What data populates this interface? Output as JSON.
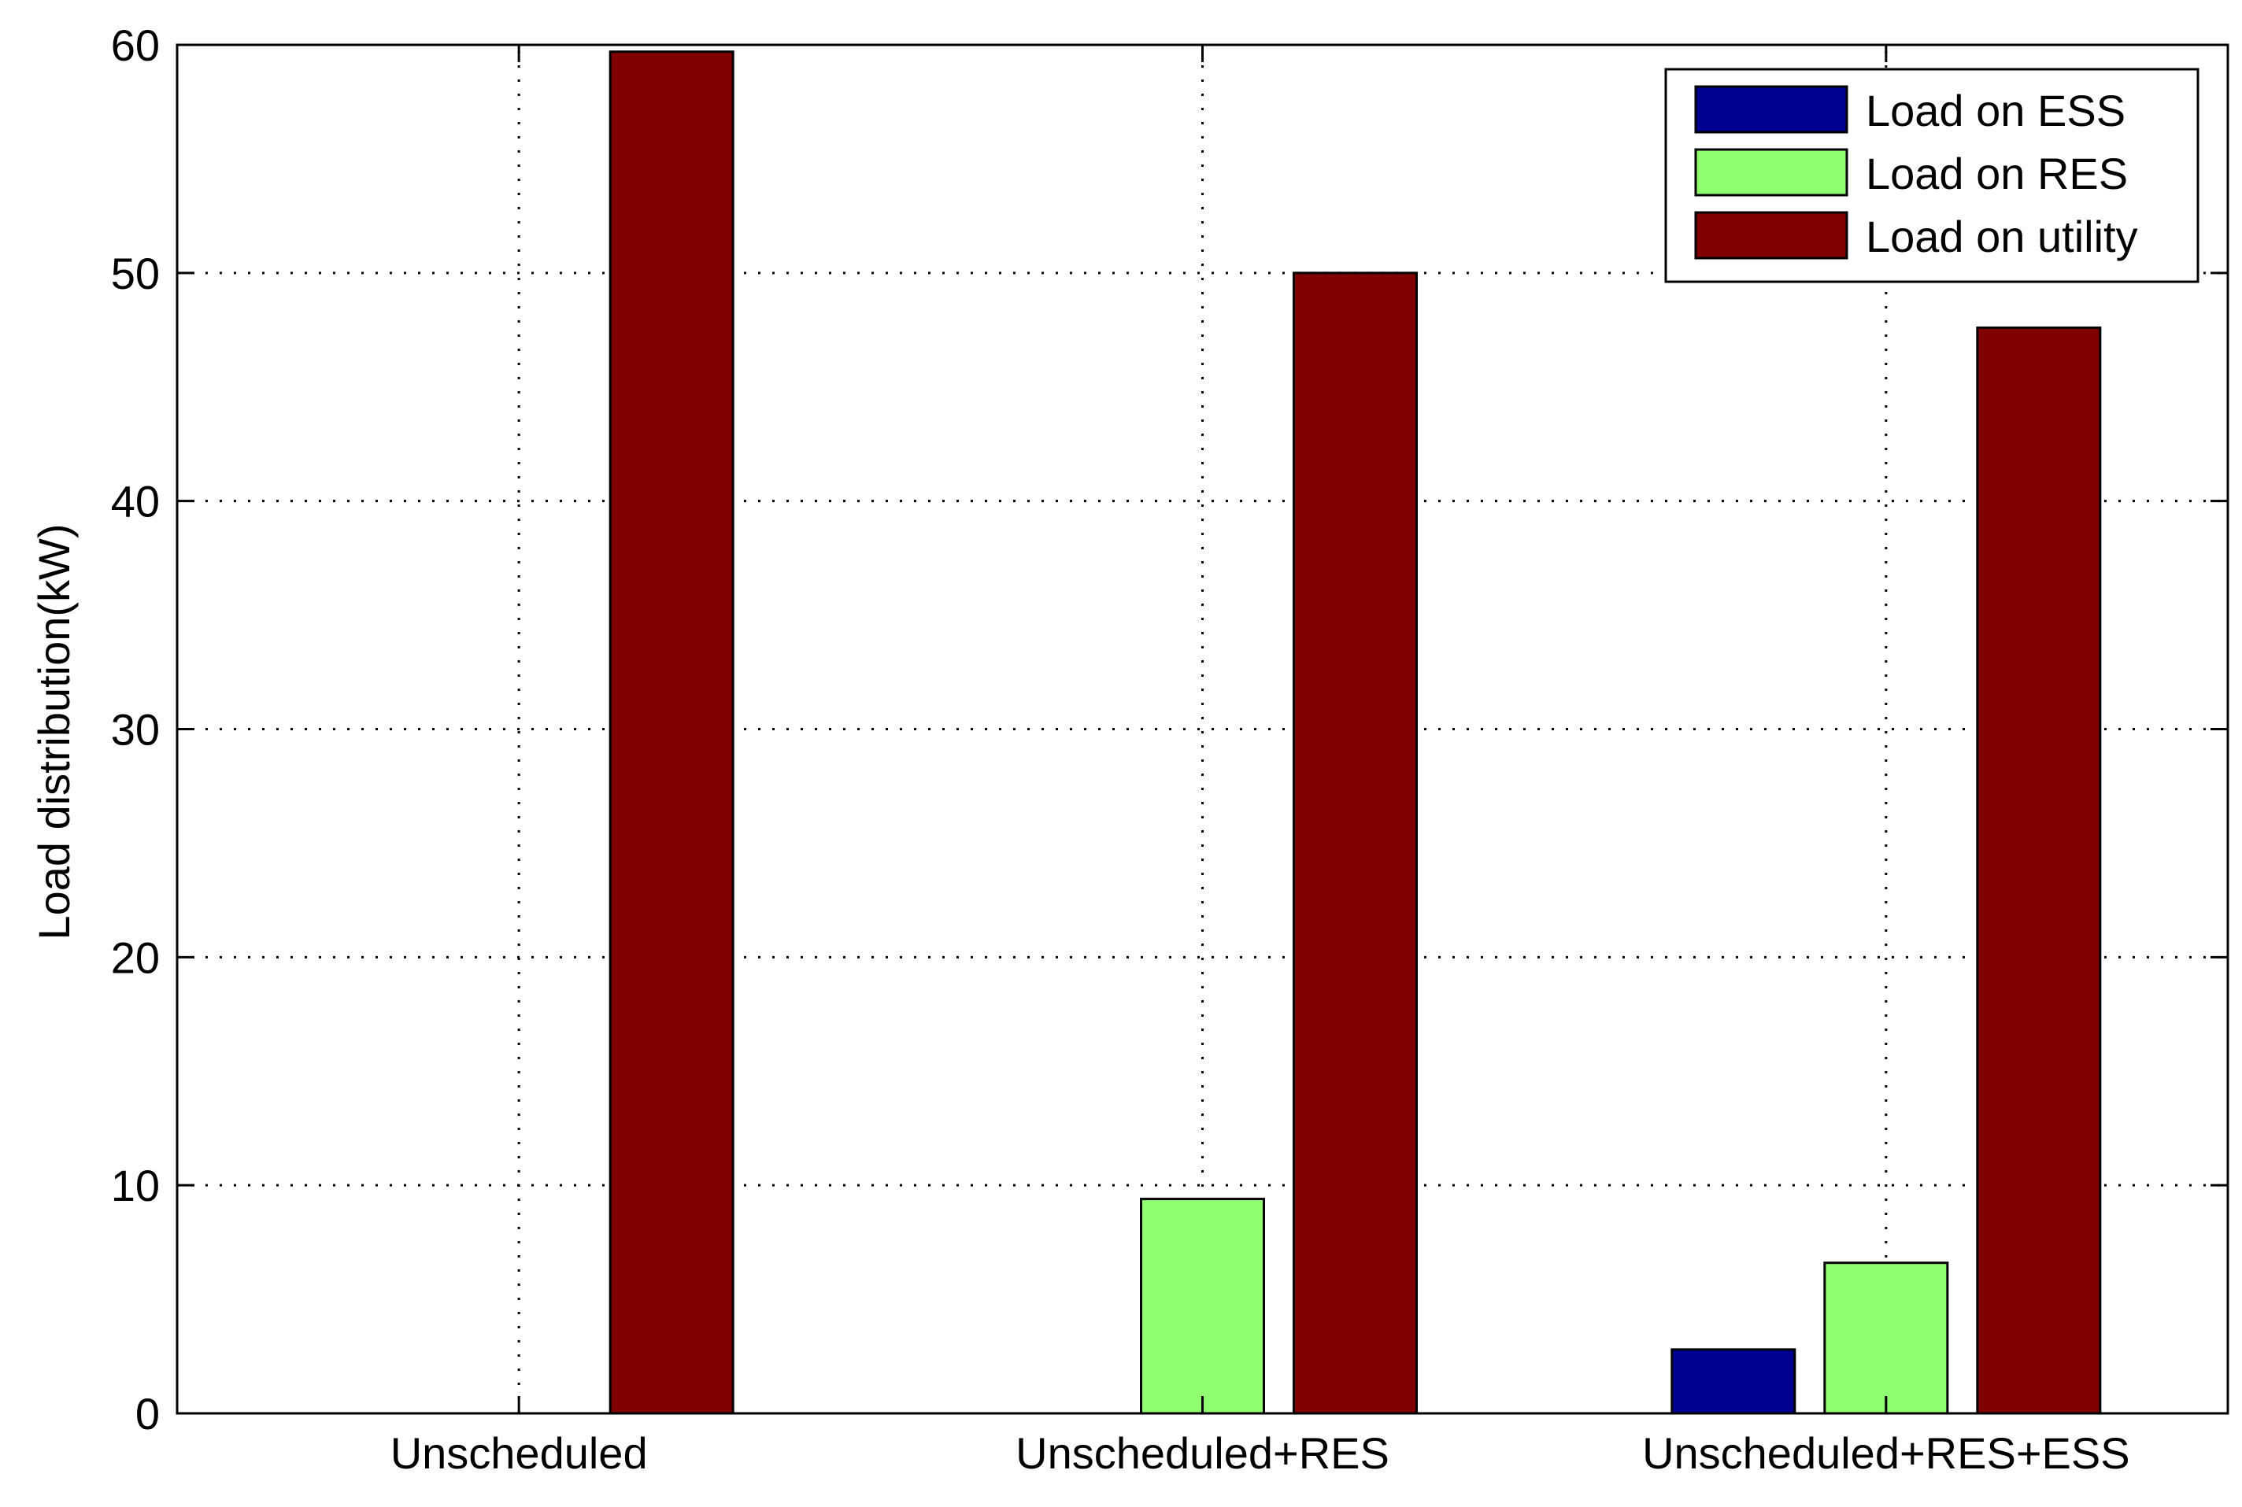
{
  "chart_data": {
    "type": "bar",
    "categories": [
      "Unscheduled",
      "Unscheduled+RES",
      "Unscheduled+RES+ESS"
    ],
    "series": [
      {
        "name": "Load on ESS",
        "color": "#000090",
        "values": [
          0,
          0,
          2.8
        ]
      },
      {
        "name": "Load on RES",
        "color": "#90ff70",
        "values": [
          0,
          9.4,
          6.6
        ]
      },
      {
        "name": "Load on utility",
        "color": "#800000",
        "values": [
          59.7,
          50.0,
          47.6
        ]
      }
    ],
    "ylabel": "Load distribution(kW)",
    "xlabel": "",
    "title": "",
    "ylim": [
      0,
      60
    ],
    "yticks": [
      0,
      10,
      20,
      30,
      40,
      50,
      60
    ],
    "grid": true,
    "legend_position": "top-right"
  }
}
